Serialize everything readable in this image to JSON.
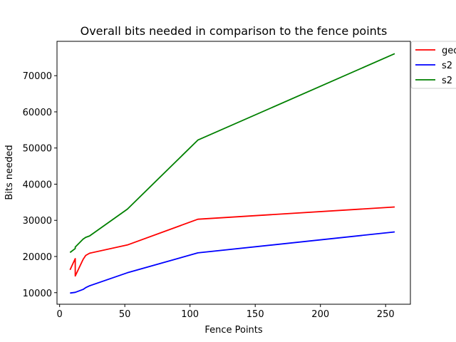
{
  "chart_data": {
    "type": "line",
    "title": "Overall bits needed in comparison to the fence points",
    "xlabel": "Fence Points",
    "ylabel": "Bits needed",
    "xlim": [
      -2,
      269
    ],
    "ylim": [
      6800,
      79500
    ],
    "xticks": [
      0,
      50,
      100,
      150,
      200,
      250
    ],
    "yticks": [
      10000,
      20000,
      30000,
      40000,
      50000,
      60000,
      70000
    ],
    "legend_position": "top-right, outside plot",
    "series": [
      {
        "name": "geo",
        "color": "#ff0000",
        "x": [
          8,
          12,
          12,
          18,
          20,
          23,
          52,
          106,
          257
        ],
        "y": [
          16300,
          19400,
          14600,
          19200,
          20300,
          20900,
          23200,
          30300,
          33700
        ]
      },
      {
        "name": "s2",
        "color": "#0000ff",
        "x": [
          8,
          10,
          12,
          18,
          20,
          23,
          52,
          106,
          257
        ],
        "y": [
          9900,
          10000,
          10100,
          10900,
          11400,
          11900,
          15500,
          21000,
          26800
        ]
      },
      {
        "name": "s2",
        "color": "#008000",
        "x": [
          8,
          12,
          12,
          18,
          20,
          23,
          52,
          106,
          257
        ],
        "y": [
          21100,
          22200,
          22600,
          24800,
          25300,
          25700,
          33100,
          52200,
          76100
        ]
      }
    ]
  }
}
